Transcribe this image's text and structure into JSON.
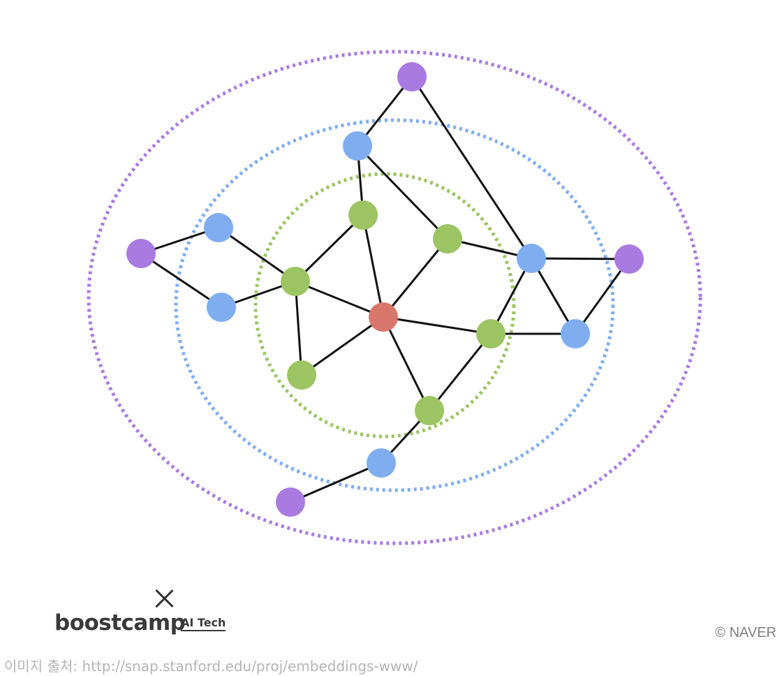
{
  "diagram": {
    "colors": {
      "center": "#d9766c",
      "hop1": "#9cc463",
      "hop2": "#7fadf0",
      "hop3": "#a97ae0",
      "edge": "#111111"
    },
    "rings": [
      {
        "name": "hop-1-ring",
        "color": "#9cc463"
      },
      {
        "name": "hop-2-ring",
        "color": "#7fadf0"
      },
      {
        "name": "hop-3-ring",
        "color": "#a97ae0"
      }
    ],
    "nodes": [
      {
        "id": "c",
        "level": "center"
      },
      {
        "id": "g1",
        "level": "hop1"
      },
      {
        "id": "g2",
        "level": "hop1"
      },
      {
        "id": "g3",
        "level": "hop1"
      },
      {
        "id": "g4",
        "level": "hop1"
      },
      {
        "id": "g5",
        "level": "hop1"
      },
      {
        "id": "g6",
        "level": "hop1"
      },
      {
        "id": "b1",
        "level": "hop2"
      },
      {
        "id": "b2",
        "level": "hop2"
      },
      {
        "id": "b3",
        "level": "hop2"
      },
      {
        "id": "b4",
        "level": "hop2"
      },
      {
        "id": "b5",
        "level": "hop2"
      },
      {
        "id": "b6",
        "level": "hop2"
      },
      {
        "id": "p1",
        "level": "hop3"
      },
      {
        "id": "p2",
        "level": "hop3"
      },
      {
        "id": "p3",
        "level": "hop3"
      },
      {
        "id": "p4",
        "level": "hop3"
      }
    ],
    "edges": [
      [
        "c",
        "g1"
      ],
      [
        "c",
        "g2"
      ],
      [
        "c",
        "g3"
      ],
      [
        "c",
        "g4"
      ],
      [
        "c",
        "g5"
      ],
      [
        "c",
        "g6"
      ],
      [
        "g1",
        "g3"
      ],
      [
        "g3",
        "g4"
      ],
      [
        "g1",
        "b1"
      ],
      [
        "g3",
        "b2"
      ],
      [
        "g3",
        "b3"
      ],
      [
        "g2",
        "b1"
      ],
      [
        "g2",
        "b4"
      ],
      [
        "g5",
        "b4"
      ],
      [
        "g5",
        "b5"
      ],
      [
        "g6",
        "g5"
      ],
      [
        "g6",
        "b6"
      ],
      [
        "b4",
        "b5"
      ],
      [
        "b1",
        "p1"
      ],
      [
        "b4",
        "p1"
      ],
      [
        "b2",
        "p2"
      ],
      [
        "b3",
        "p2"
      ],
      [
        "b4",
        "p3"
      ],
      [
        "b5",
        "p3"
      ],
      [
        "b6",
        "p4"
      ]
    ]
  },
  "footer": {
    "logo_main": "boostcamp",
    "logo_sub": "AI Tech",
    "copyright": "©  NAVER",
    "source": "이미지 출처: http://snap.stanford.edu/proj/embeddings-www/"
  }
}
